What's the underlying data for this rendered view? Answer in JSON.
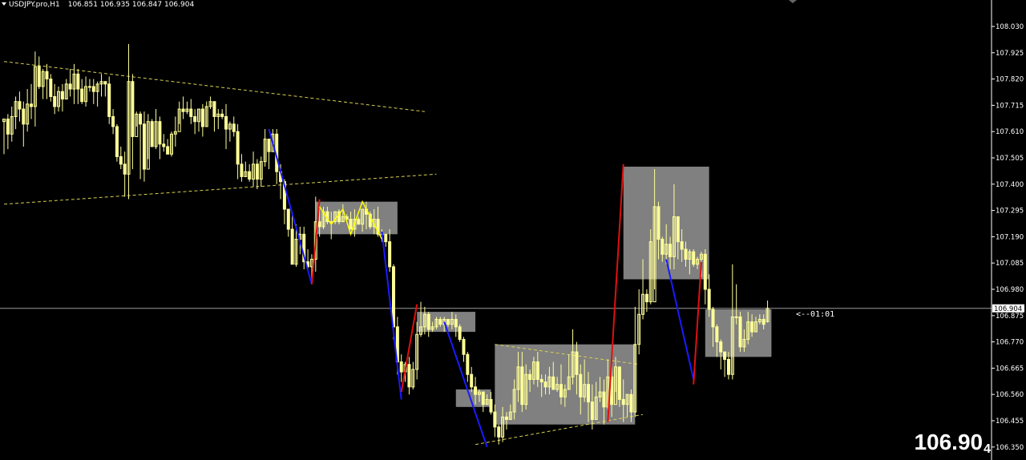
{
  "header": {
    "symbol_timeframe": "USDJPY.pro,H1",
    "ohlc": "106.851 106.935 106.847 106.904"
  },
  "big_price": {
    "main": "106.90",
    "pip": "4"
  },
  "countdown": "<--01:01",
  "colors": {
    "background": "#000000",
    "candle": "#ffff99",
    "zone": "#808080",
    "trend_up": "#e01010",
    "trend_down": "#1a1aff",
    "dashed_lines": "#d8d050",
    "zigzag": "#ffff00",
    "price_line": "#9a9a9a"
  },
  "chart_data": {
    "type": "candlestick",
    "title": "USDJPY.pro,H1",
    "ylim": [
      106.35,
      108.1
    ],
    "y_ticks": [
      "108.030",
      "107.925",
      "107.820",
      "107.715",
      "107.610",
      "107.505",
      "107.400",
      "107.295",
      "107.190",
      "107.085",
      "106.980",
      "106.875",
      "106.770",
      "106.665",
      "106.560",
      "106.455",
      "106.350"
    ],
    "current_price": "106.904",
    "ohlc_last": {
      "open": 106.851,
      "high": 106.935,
      "low": 106.847,
      "close": 106.904
    },
    "zones": [
      {
        "x_from": 80,
        "x_to": 101,
        "top": 107.33,
        "bottom": 107.2
      },
      {
        "x_from": 106,
        "x_to": 121,
        "top": 106.89,
        "bottom": 106.81
      },
      {
        "x_from": 116,
        "x_to": 125,
        "top": 106.58,
        "bottom": 106.51
      },
      {
        "x_from": 126,
        "x_to": 162,
        "top": 106.76,
        "bottom": 106.44
      },
      {
        "x_from": 159,
        "x_to": 181,
        "top": 107.47,
        "bottom": 107.02
      },
      {
        "x_from": 180,
        "x_to": 197,
        "top": 106.9,
        "bottom": 106.71
      }
    ],
    "trendlines": [
      {
        "from": [
          0,
          107.89
        ],
        "to": [
          108,
          107.69
        ]
      },
      {
        "from": [
          0,
          107.32
        ],
        "to": [
          111,
          107.44
        ]
      },
      {
        "from": [
          121,
          106.36
        ],
        "to": [
          164,
          106.48
        ]
      },
      {
        "from": [
          126,
          106.76
        ],
        "to": [
          163,
          106.68
        ]
      }
    ],
    "impulses": [
      {
        "dir": "down",
        "from": [
          68,
          107.62
        ],
        "to": [
          79,
          107.0
        ]
      },
      {
        "dir": "up",
        "from": [
          79,
          107.0
        ],
        "to": [
          81,
          107.34
        ]
      },
      {
        "dir": "down",
        "from": [
          97,
          107.21
        ],
        "to": [
          102,
          106.54
        ]
      },
      {
        "dir": "up",
        "from": [
          102,
          106.57
        ],
        "to": [
          106,
          106.92
        ]
      },
      {
        "dir": "down",
        "from": [
          113,
          106.85
        ],
        "to": [
          124,
          106.35
        ]
      },
      {
        "dir": "up",
        "from": [
          155,
          106.45
        ],
        "to": [
          159,
          107.48
        ]
      },
      {
        "dir": "down",
        "from": [
          170,
          107.1
        ],
        "to": [
          177,
          106.62
        ]
      },
      {
        "dir": "up",
        "from": [
          177,
          106.6
        ],
        "to": [
          179,
          107.09
        ]
      }
    ],
    "zigzag": [
      [
        81,
        107.31
      ],
      [
        84,
        107.24
      ],
      [
        87,
        107.3
      ],
      [
        89,
        107.2
      ],
      [
        92,
        107.33
      ],
      [
        95,
        107.24
      ],
      [
        97,
        107.18
      ]
    ],
    "candles": [
      [
        107.65,
        107.66,
        107.66,
        107.52
      ],
      [
        107.66,
        107.6,
        107.68,
        107.54
      ],
      [
        107.6,
        107.67,
        107.71,
        107.57
      ],
      [
        107.67,
        107.73,
        107.75,
        107.62
      ],
      [
        107.73,
        107.7,
        107.77,
        107.65
      ],
      [
        107.7,
        107.64,
        107.73,
        107.55
      ],
      [
        107.64,
        107.72,
        107.78,
        107.61
      ],
      [
        107.72,
        107.71,
        107.8,
        107.66
      ],
      [
        107.71,
        107.87,
        107.93,
        107.63
      ],
      [
        107.87,
        107.79,
        107.91,
        107.78
      ],
      [
        107.79,
        107.85,
        107.86,
        107.74
      ],
      [
        107.85,
        107.82,
        107.88,
        107.74
      ],
      [
        107.82,
        107.75,
        107.84,
        107.73
      ],
      [
        107.75,
        107.71,
        107.8,
        107.68
      ],
      [
        107.71,
        107.77,
        107.79,
        107.69
      ],
      [
        107.77,
        107.74,
        107.8,
        107.69
      ],
      [
        107.74,
        107.8,
        107.82,
        107.74
      ],
      [
        107.8,
        107.78,
        107.86,
        107.75
      ],
      [
        107.78,
        107.84,
        107.88,
        107.72
      ],
      [
        107.84,
        107.78,
        107.86,
        107.72
      ],
      [
        107.78,
        107.73,
        107.82,
        107.72
      ],
      [
        107.73,
        107.79,
        107.83,
        107.71
      ],
      [
        107.79,
        107.79,
        107.82,
        107.77
      ],
      [
        107.79,
        107.77,
        107.82,
        107.72
      ],
      [
        107.77,
        107.8,
        107.81,
        107.71
      ],
      [
        107.8,
        107.81,
        107.84,
        107.75
      ],
      [
        107.81,
        107.8,
        107.81,
        107.75
      ],
      [
        107.8,
        107.67,
        107.83,
        107.64
      ],
      [
        107.67,
        107.63,
        107.7,
        107.6
      ],
      [
        107.63,
        107.51,
        107.64,
        107.49
      ],
      [
        107.51,
        107.48,
        107.55,
        107.46
      ],
      [
        107.48,
        107.44,
        107.53,
        107.35
      ],
      [
        107.44,
        107.81,
        107.96,
        107.34
      ],
      [
        107.81,
        107.59,
        107.84,
        107.46
      ],
      [
        107.59,
        107.68,
        107.69,
        107.63
      ],
      [
        107.68,
        107.64,
        107.69,
        107.42
      ],
      [
        107.64,
        107.46,
        107.69,
        107.41
      ],
      [
        107.46,
        107.65,
        107.68,
        107.5
      ],
      [
        107.65,
        107.55,
        107.66,
        107.55
      ],
      [
        107.55,
        107.65,
        107.7,
        107.54
      ],
      [
        107.65,
        107.56,
        107.67,
        107.5
      ],
      [
        107.56,
        107.55,
        107.6,
        107.53
      ],
      [
        107.55,
        107.52,
        107.58,
        107.52
      ],
      [
        107.52,
        107.6,
        107.61,
        107.51
      ],
      [
        107.6,
        107.61,
        107.67,
        107.55
      ],
      [
        107.61,
        107.7,
        107.73,
        107.64
      ],
      [
        107.7,
        107.69,
        107.75,
        107.66
      ],
      [
        107.69,
        107.7,
        107.73,
        107.68
      ],
      [
        107.7,
        107.67,
        107.74,
        107.64
      ],
      [
        107.67,
        107.65,
        107.7,
        107.6
      ],
      [
        107.65,
        107.7,
        107.7,
        107.61
      ],
      [
        107.7,
        107.63,
        107.72,
        107.59
      ],
      [
        107.63,
        107.71,
        107.73,
        107.63
      ],
      [
        107.71,
        107.73,
        107.75,
        107.7
      ],
      [
        107.73,
        107.67,
        107.73,
        107.61
      ],
      [
        107.67,
        107.68,
        107.7,
        107.62
      ],
      [
        107.68,
        107.67,
        107.7,
        107.66
      ],
      [
        107.67,
        107.62,
        107.72,
        107.54
      ],
      [
        107.62,
        107.64,
        107.65,
        107.57
      ],
      [
        107.64,
        107.61,
        107.67,
        107.59
      ],
      [
        107.61,
        107.48,
        107.64,
        107.42
      ],
      [
        107.48,
        107.43,
        107.52,
        107.41
      ],
      [
        107.43,
        107.45,
        107.49,
        107.43
      ],
      [
        107.45,
        107.42,
        107.48,
        107.41
      ],
      [
        107.42,
        107.48,
        107.53,
        107.39
      ],
      [
        107.48,
        107.42,
        107.5,
        107.38
      ],
      [
        107.42,
        107.49,
        107.51,
        107.39
      ],
      [
        107.49,
        107.58,
        107.62,
        107.47
      ],
      [
        107.58,
        107.53,
        107.58,
        107.46
      ],
      [
        107.53,
        107.6,
        107.62,
        107.53
      ],
      [
        107.6,
        107.45,
        107.62,
        107.4
      ],
      [
        107.45,
        107.41,
        107.48,
        107.34
      ],
      [
        107.41,
        107.3,
        107.42,
        107.24
      ],
      [
        107.3,
        107.22,
        107.3,
        107.19
      ],
      [
        107.22,
        107.08,
        107.29,
        107.08
      ],
      [
        107.08,
        107.18,
        107.24,
        107.07
      ],
      [
        107.18,
        107.2,
        107.23,
        107.12
      ],
      [
        107.2,
        107.09,
        107.23,
        107.06
      ],
      [
        107.09,
        107.07,
        107.14,
        107.06
      ],
      [
        107.07,
        107.1,
        107.12,
        107.02
      ],
      [
        107.1,
        107.25,
        107.35,
        107.05
      ],
      [
        107.25,
        107.23,
        107.32,
        107.19
      ],
      [
        107.23,
        107.29,
        107.31,
        107.22
      ],
      [
        107.29,
        107.25,
        107.31,
        107.24
      ],
      [
        107.25,
        107.25,
        107.29,
        107.18
      ],
      [
        107.25,
        107.29,
        107.29,
        107.24
      ],
      [
        107.29,
        107.25,
        107.3,
        107.24
      ],
      [
        107.25,
        107.27,
        107.32,
        107.25
      ],
      [
        107.27,
        107.26,
        107.28,
        107.25
      ],
      [
        107.26,
        107.22,
        107.29,
        107.22
      ],
      [
        107.22,
        107.26,
        107.3,
        107.19
      ],
      [
        107.26,
        107.24,
        107.27,
        107.24
      ],
      [
        107.24,
        107.3,
        107.3,
        107.21
      ],
      [
        107.3,
        107.28,
        107.33,
        107.22
      ],
      [
        107.28,
        107.23,
        107.29,
        107.22
      ],
      [
        107.23,
        107.26,
        107.3,
        107.2
      ],
      [
        107.26,
        107.2,
        107.31,
        107.19
      ],
      [
        107.2,
        107.2,
        107.22,
        107.17
      ],
      [
        107.2,
        107.17,
        107.19,
        107.15
      ],
      [
        107.17,
        107.07,
        107.22,
        107.05
      ],
      [
        107.07,
        106.83,
        107.08,
        106.78
      ],
      [
        106.83,
        106.69,
        106.87,
        106.64
      ],
      [
        106.69,
        106.65,
        106.72,
        106.61
      ],
      [
        106.65,
        106.68,
        106.69,
        106.61
      ],
      [
        106.68,
        106.59,
        106.71,
        106.56
      ],
      [
        106.59,
        106.66,
        106.69,
        106.58
      ],
      [
        106.66,
        106.8,
        106.85,
        106.62
      ],
      [
        106.8,
        106.83,
        106.93,
        106.79
      ],
      [
        106.83,
        106.88,
        106.91,
        106.8
      ],
      [
        106.88,
        106.82,
        106.89,
        106.79
      ],
      [
        106.82,
        106.83,
        106.85,
        106.81
      ],
      [
        106.83,
        106.86,
        106.87,
        106.82
      ],
      [
        106.86,
        106.84,
        106.87,
        106.83
      ],
      [
        106.84,
        106.86,
        106.87,
        106.81
      ],
      [
        106.86,
        106.84,
        106.86,
        106.83
      ],
      [
        106.84,
        106.86,
        106.89,
        106.82
      ],
      [
        106.86,
        106.83,
        106.88,
        106.79
      ],
      [
        106.83,
        106.78,
        106.84,
        106.77
      ],
      [
        106.78,
        106.72,
        106.79,
        106.69
      ],
      [
        106.72,
        106.64,
        106.73,
        106.61
      ],
      [
        106.64,
        106.59,
        106.67,
        106.57
      ],
      [
        106.59,
        106.56,
        106.63,
        106.52
      ],
      [
        106.56,
        106.57,
        106.58,
        106.53
      ],
      [
        106.57,
        106.52,
        106.57,
        106.49
      ],
      [
        106.52,
        106.54,
        106.56,
        106.52
      ],
      [
        106.54,
        106.49,
        106.57,
        106.48
      ],
      [
        106.49,
        106.43,
        106.52,
        106.39
      ],
      [
        106.43,
        106.39,
        106.44,
        106.36
      ],
      [
        106.39,
        106.47,
        106.51,
        106.37
      ],
      [
        106.47,
        106.46,
        106.49,
        106.42
      ],
      [
        106.46,
        106.49,
        106.52,
        106.46
      ],
      [
        106.49,
        106.58,
        106.62,
        106.46
      ],
      [
        106.58,
        106.67,
        106.73,
        106.53
      ],
      [
        106.67,
        106.52,
        106.73,
        106.49
      ],
      [
        106.52,
        106.64,
        106.68,
        106.5
      ],
      [
        106.64,
        106.62,
        106.66,
        106.57
      ],
      [
        106.62,
        106.69,
        106.71,
        106.6
      ],
      [
        106.69,
        106.62,
        106.73,
        106.59
      ],
      [
        106.62,
        106.61,
        106.64,
        106.55
      ],
      [
        106.61,
        106.59,
        106.64,
        106.56
      ],
      [
        106.59,
        106.63,
        106.67,
        106.56
      ],
      [
        106.63,
        106.58,
        106.69,
        106.58
      ],
      [
        106.58,
        106.6,
        106.63,
        106.57
      ],
      [
        106.6,
        106.55,
        106.68,
        106.52
      ],
      [
        106.55,
        106.58,
        106.6,
        106.51
      ],
      [
        106.58,
        106.63,
        106.72,
        106.58
      ],
      [
        106.63,
        106.73,
        106.82,
        106.6
      ],
      [
        106.73,
        106.64,
        106.77,
        106.56
      ],
      [
        106.64,
        106.55,
        106.68,
        106.48
      ],
      [
        106.55,
        106.6,
        106.7,
        106.53
      ],
      [
        106.6,
        106.53,
        106.65,
        106.45
      ],
      [
        106.53,
        106.46,
        106.6,
        106.42
      ],
      [
        106.46,
        106.55,
        106.61,
        106.46
      ],
      [
        106.55,
        106.57,
        106.63,
        106.53
      ],
      [
        106.57,
        106.51,
        106.62,
        106.44
      ],
      [
        106.51,
        106.63,
        106.7,
        106.5
      ],
      [
        106.63,
        106.52,
        106.68,
        106.47
      ],
      [
        106.52,
        106.67,
        106.71,
        106.57
      ],
      [
        106.67,
        106.54,
        106.67,
        106.51
      ],
      [
        106.54,
        106.52,
        106.62,
        106.45
      ],
      [
        106.52,
        106.56,
        106.56,
        106.47
      ],
      [
        106.56,
        106.49,
        106.58,
        106.45
      ],
      [
        106.49,
        106.76,
        106.91,
        106.47
      ],
      [
        106.76,
        106.88,
        106.98,
        106.72
      ],
      [
        106.88,
        106.96,
        107.1,
        106.86
      ],
      [
        106.96,
        106.93,
        106.98,
        106.89
      ],
      [
        106.93,
        107.17,
        107.22,
        106.92
      ],
      [
        106.93,
        107.31,
        107.46,
        106.98
      ],
      [
        107.31,
        107.18,
        107.33,
        107.1
      ],
      [
        107.18,
        107.12,
        107.19,
        107.09
      ],
      [
        107.12,
        107.16,
        107.24,
        107.08
      ],
      [
        107.16,
        107.11,
        107.19,
        107.06
      ],
      [
        107.11,
        107.27,
        107.4,
        107.06
      ],
      [
        107.27,
        107.17,
        107.27,
        107.1
      ],
      [
        107.17,
        107.14,
        107.22,
        107.09
      ],
      [
        107.14,
        107.1,
        107.17,
        107.07
      ],
      [
        107.1,
        107.13,
        107.14,
        107.04
      ],
      [
        107.13,
        107.08,
        107.14,
        107.07
      ],
      [
        107.08,
        107.1,
        107.11,
        107.06
      ],
      [
        107.1,
        107.12,
        107.13,
        107.03
      ],
      [
        107.12,
        106.98,
        107.14,
        106.92
      ],
      [
        106.98,
        106.9,
        107.04,
        106.87
      ],
      [
        106.9,
        106.83,
        106.91,
        106.75
      ],
      [
        106.83,
        106.77,
        106.84,
        106.71
      ],
      [
        106.77,
        106.73,
        106.78,
        106.66
      ],
      [
        106.73,
        106.7,
        106.73,
        106.63
      ],
      [
        106.7,
        106.64,
        106.73,
        106.62
      ],
      [
        106.64,
        106.87,
        107.08,
        106.62
      ],
      [
        106.87,
        106.87,
        107.0,
        106.84
      ],
      [
        106.87,
        106.75,
        106.89,
        106.73
      ],
      [
        106.75,
        106.78,
        106.82,
        106.73
      ],
      [
        106.78,
        106.85,
        106.89,
        106.76
      ],
      [
        106.85,
        106.81,
        106.88,
        106.79
      ],
      [
        106.81,
        106.85,
        106.87,
        106.81
      ],
      [
        106.85,
        106.86,
        106.88,
        106.84
      ],
      [
        106.86,
        106.84,
        106.88,
        106.82
      ],
      [
        106.851,
        106.904,
        106.935,
        106.847
      ]
    ]
  }
}
